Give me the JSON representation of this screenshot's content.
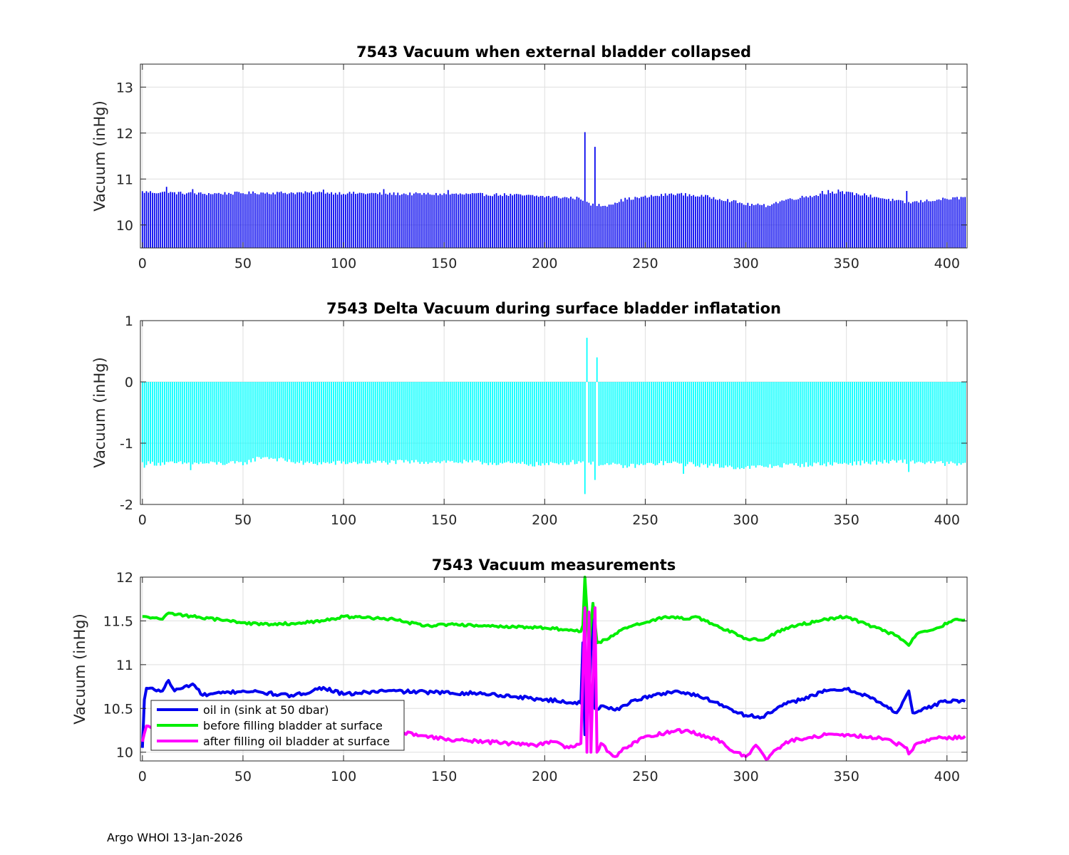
{
  "footer": "Argo WHOI 13-Jan-2026",
  "colors": {
    "bar1": "#0000ee",
    "bar2": "#00ffff",
    "grid": "#dfdfdf",
    "axis": "#262626"
  },
  "chart_data": [
    {
      "type": "bar",
      "title": "7543 Vacuum when external bladder collapsed",
      "xlabel": "",
      "ylabel": "Vacuum (inHg)",
      "xlim": [
        -1,
        410
      ],
      "ylim": [
        9.5,
        13.5
      ],
      "xticks": [
        0,
        50,
        100,
        150,
        200,
        250,
        300,
        350,
        400
      ],
      "yticks": [
        10,
        11,
        12,
        13
      ],
      "baseline": 9.5,
      "color": "#0000ee",
      "grid": true,
      "profile": [
        [
          0,
          10.72
        ],
        [
          30,
          10.68
        ],
        [
          60,
          10.7
        ],
        [
          90,
          10.7
        ],
        [
          120,
          10.68
        ],
        [
          150,
          10.67
        ],
        [
          180,
          10.66
        ],
        [
          200,
          10.62
        ],
        [
          218,
          10.58
        ],
        [
          222,
          10.45
        ],
        [
          230,
          10.42
        ],
        [
          240,
          10.56
        ],
        [
          265,
          10.68
        ],
        [
          280,
          10.62
        ],
        [
          290,
          10.55
        ],
        [
          300,
          10.45
        ],
        [
          310,
          10.42
        ],
        [
          320,
          10.55
        ],
        [
          345,
          10.72
        ],
        [
          360,
          10.65
        ],
        [
          380,
          10.48
        ],
        [
          395,
          10.55
        ],
        [
          410,
          10.6
        ]
      ],
      "spikes": [
        [
          12,
          10.83
        ],
        [
          25,
          10.78
        ],
        [
          90,
          10.77
        ],
        [
          120,
          10.78
        ],
        [
          152,
          10.76
        ],
        [
          220,
          12.02
        ],
        [
          225,
          11.7
        ],
        [
          338,
          10.74
        ],
        [
          341,
          10.76
        ],
        [
          346,
          10.77
        ],
        [
          380,
          10.74
        ]
      ],
      "n": 410,
      "noise": 0.035
    },
    {
      "type": "bar",
      "title": "7543 Delta Vacuum during surface bladder inflatation",
      "xlabel": "",
      "ylabel": "Vacuum (inHg)",
      "xlim": [
        -1,
        410
      ],
      "ylim": [
        -2,
        1
      ],
      "xticks": [
        0,
        50,
        100,
        150,
        200,
        250,
        300,
        350,
        400
      ],
      "yticks": [
        -2,
        -1,
        0,
        1
      ],
      "baseline": 0,
      "color": "#00ffff",
      "grid": true,
      "profile": [
        [
          0,
          -1.33
        ],
        [
          50,
          -1.33
        ],
        [
          60,
          -1.22
        ],
        [
          80,
          -1.33
        ],
        [
          150,
          -1.3
        ],
        [
          200,
          -1.35
        ],
        [
          218,
          -1.3
        ],
        [
          240,
          -1.38
        ],
        [
          260,
          -1.32
        ],
        [
          300,
          -1.4
        ],
        [
          320,
          -1.36
        ],
        [
          350,
          -1.33
        ],
        [
          380,
          -1.3
        ],
        [
          410,
          -1.35
        ]
      ],
      "spikes": [
        [
          1,
          -1.4
        ],
        [
          24,
          -1.44
        ],
        [
          220,
          -1.83
        ],
        [
          221,
          0.72
        ],
        [
          225,
          -1.6
        ],
        [
          226,
          0.4
        ],
        [
          269,
          -1.5
        ],
        [
          381,
          -1.47
        ]
      ],
      "n": 410,
      "noise": 0.04
    },
    {
      "type": "line",
      "title": "7543 Vacuum measurements",
      "xlabel": "",
      "ylabel": "Vacuum (inHg)",
      "xlim": [
        -1,
        410
      ],
      "ylim": [
        9.9,
        12
      ],
      "xticks": [
        0,
        50,
        100,
        150,
        200,
        250,
        300,
        350,
        400
      ],
      "yticks": [
        10,
        10.5,
        11,
        11.5,
        12
      ],
      "ytick_labels": [
        "10",
        "10.5",
        "11",
        "11.5",
        "12"
      ],
      "grid": true,
      "legend_position": "lower-left",
      "series": [
        {
          "name": "oil in (sink at 50 dbar)",
          "color": "#0000ee",
          "profile": [
            [
              0,
              10.05
            ],
            [
              1,
              10.6
            ],
            [
              2,
              10.73
            ],
            [
              10,
              10.7
            ],
            [
              13,
              10.82
            ],
            [
              16,
              10.7
            ],
            [
              25,
              10.78
            ],
            [
              30,
              10.65
            ],
            [
              50,
              10.7
            ],
            [
              60,
              10.68
            ],
            [
              75,
              10.64
            ],
            [
              90,
              10.74
            ],
            [
              100,
              10.66
            ],
            [
              120,
              10.7
            ],
            [
              150,
              10.68
            ],
            [
              170,
              10.67
            ],
            [
              200,
              10.6
            ],
            [
              218,
              10.56
            ],
            [
              219,
              11.25
            ],
            [
              220,
              10.2
            ],
            [
              222,
              10.6
            ],
            [
              224,
              11.7
            ],
            [
              225,
              10.5
            ],
            [
              230,
              10.52
            ],
            [
              235,
              10.48
            ],
            [
              245,
              10.6
            ],
            [
              265,
              10.7
            ],
            [
              280,
              10.62
            ],
            [
              290,
              10.52
            ],
            [
              300,
              10.42
            ],
            [
              308,
              10.4
            ],
            [
              320,
              10.55
            ],
            [
              340,
              10.7
            ],
            [
              350,
              10.72
            ],
            [
              360,
              10.65
            ],
            [
              375,
              10.45
            ],
            [
              381,
              10.7
            ],
            [
              383,
              10.45
            ],
            [
              390,
              10.5
            ],
            [
              398,
              10.58
            ],
            [
              410,
              10.59
            ]
          ],
          "noise": 0.02
        },
        {
          "name": "before filling bladder at surface",
          "color": "#00ee00",
          "profile": [
            [
              0,
              11.55
            ],
            [
              10,
              11.52
            ],
            [
              13,
              11.59
            ],
            [
              25,
              11.55
            ],
            [
              50,
              11.48
            ],
            [
              60,
              11.46
            ],
            [
              75,
              11.47
            ],
            [
              90,
              11.5
            ],
            [
              100,
              11.55
            ],
            [
              125,
              11.52
            ],
            [
              140,
              11.44
            ],
            [
              150,
              11.46
            ],
            [
              175,
              11.44
            ],
            [
              200,
              11.42
            ],
            [
              210,
              11.4
            ],
            [
              218,
              11.38
            ],
            [
              219,
              11.45
            ],
            [
              220,
              12.02
            ],
            [
              222,
              11.2
            ],
            [
              224,
              11.7
            ],
            [
              226,
              11.25
            ],
            [
              232,
              11.3
            ],
            [
              240,
              11.42
            ],
            [
              250,
              11.48
            ],
            [
              260,
              11.55
            ],
            [
              270,
              11.52
            ],
            [
              275,
              11.55
            ],
            [
              285,
              11.45
            ],
            [
              300,
              11.3
            ],
            [
              308,
              11.28
            ],
            [
              320,
              11.42
            ],
            [
              340,
              11.52
            ],
            [
              350,
              11.55
            ],
            [
              360,
              11.46
            ],
            [
              375,
              11.33
            ],
            [
              381,
              11.22
            ],
            [
              385,
              11.35
            ],
            [
              395,
              11.42
            ],
            [
              405,
              11.52
            ],
            [
              410,
              11.51
            ]
          ],
          "noise": 0.015
        },
        {
          "name": "after filling oil bladder at surface",
          "color": "#ff00ff",
          "profile": [
            [
              0,
              10.12
            ],
            [
              2,
              10.3
            ],
            [
              10,
              10.28
            ],
            [
              130,
              10.22
            ],
            [
              150,
              10.15
            ],
            [
              170,
              10.12
            ],
            [
              195,
              10.08
            ],
            [
              205,
              10.12
            ],
            [
              210,
              10.05
            ],
            [
              218,
              10.1
            ],
            [
              220,
              11.65
            ],
            [
              221,
              10.0
            ],
            [
              222,
              11.6
            ],
            [
              223,
              10.0
            ],
            [
              225,
              11.65
            ],
            [
              226,
              10.0
            ],
            [
              228,
              10.1
            ],
            [
              232,
              10.0
            ],
            [
              235,
              9.95
            ],
            [
              240,
              10.05
            ],
            [
              250,
              10.18
            ],
            [
              260,
              10.22
            ],
            [
              270,
              10.25
            ],
            [
              285,
              10.15
            ],
            [
              295,
              10.0
            ],
            [
              300,
              9.95
            ],
            [
              305,
              10.08
            ],
            [
              310,
              9.92
            ],
            [
              320,
              10.12
            ],
            [
              340,
              10.2
            ],
            [
              350,
              10.2
            ],
            [
              370,
              10.15
            ],
            [
              380,
              10.05
            ],
            [
              381,
              9.98
            ],
            [
              385,
              10.1
            ],
            [
              395,
              10.16
            ],
            [
              410,
              10.17
            ]
          ],
          "noise": 0.02
        }
      ]
    }
  ]
}
